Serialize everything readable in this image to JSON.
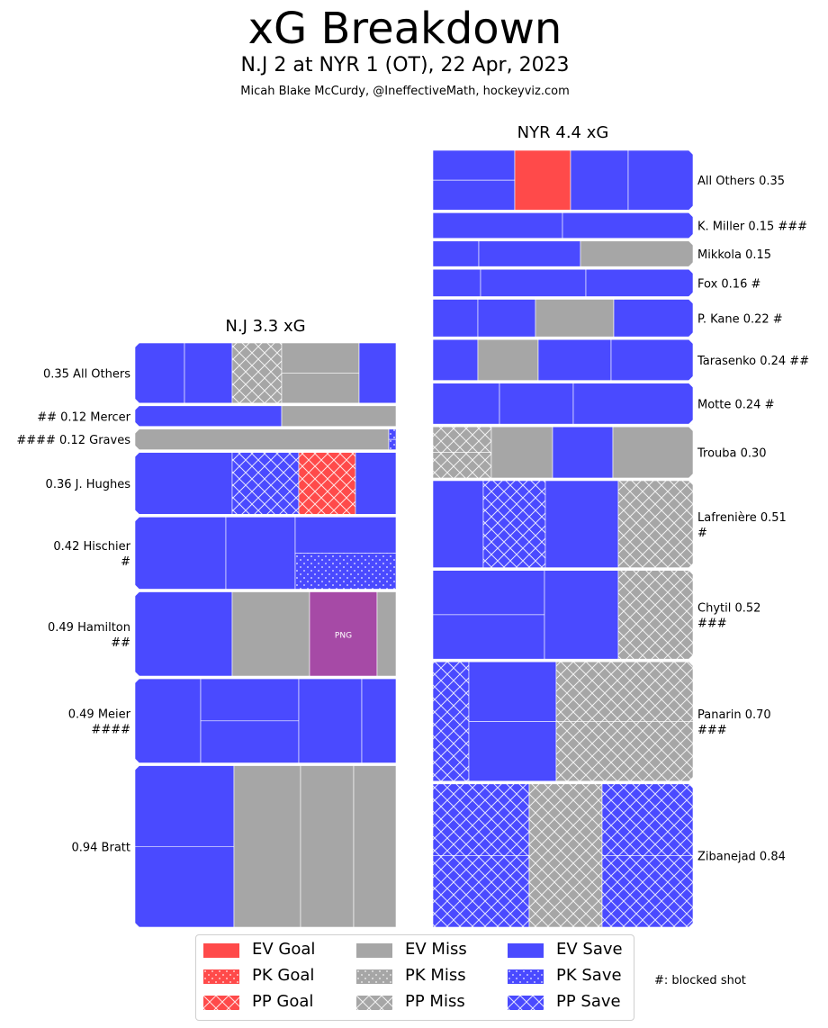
{
  "header": {
    "title": "xG Breakdown",
    "subtitle": "N.J 2 at NYR 1 (OT), 22 Apr, 2023",
    "credit": "Micah Blake McCurdy, @IneffectiveMath, hockeyviz.com"
  },
  "colors": {
    "goal": "#ff4a4a",
    "miss": "#a6a6a6",
    "save": "#4a4aff",
    "png": "#a64aa6"
  },
  "chart_data": [
    {
      "type": "treemap",
      "team": "N.J",
      "title": "N.J 3.3 xG",
      "total_xg": 3.3,
      "players": [
        {
          "label": "0.35 All Others",
          "label_lines": [
            "0.35 All Others"
          ],
          "name": "All Others",
          "xg": 0.35,
          "blocked": 0
        },
        {
          "label": "## 0.12 Mercer",
          "label_lines": [
            "## 0.12 Mercer"
          ],
          "name": "Mercer",
          "xg": 0.12,
          "blocked": 2
        },
        {
          "label": "#### 0.12 Graves",
          "label_lines": [
            "#### 0.12 Graves"
          ],
          "name": "Graves",
          "xg": 0.12,
          "blocked": 4
        },
        {
          "label": "0.36 J. Hughes",
          "label_lines": [
            "0.36 J. Hughes"
          ],
          "name": "J. Hughes",
          "xg": 0.36,
          "blocked": 0
        },
        {
          "label": "0.42 Hischier #",
          "label_lines": [
            "0.42 Hischier",
            "#"
          ],
          "name": "Hischier",
          "xg": 0.42,
          "blocked": 1
        },
        {
          "label": "0.49 Hamilton ##",
          "label_lines": [
            "0.49 Hamilton",
            "##"
          ],
          "name": "Hamilton",
          "xg": 0.49,
          "blocked": 2
        },
        {
          "label": "0.49 Meier ####",
          "label_lines": [
            "0.49 Meier",
            "####"
          ],
          "name": "Meier",
          "xg": 0.49,
          "blocked": 4
        },
        {
          "label": "0.94 Bratt",
          "label_lines": [
            "0.94 Bratt"
          ],
          "name": "Bratt",
          "xg": 0.94,
          "blocked": 0
        }
      ]
    },
    {
      "type": "treemap",
      "team": "NYR",
      "title": "NYR 4.4 xG",
      "total_xg": 4.4,
      "players": [
        {
          "label": "All Others 0.35",
          "label_lines": [
            "All Others 0.35"
          ],
          "name": "All Others",
          "xg": 0.35,
          "blocked": 0
        },
        {
          "label": "K. Miller 0.15 ###",
          "label_lines": [
            "K. Miller 0.15 ###"
          ],
          "name": "K. Miller",
          "xg": 0.15,
          "blocked": 3
        },
        {
          "label": "Mikkola 0.15",
          "label_lines": [
            "Mikkola 0.15"
          ],
          "name": "Mikkola",
          "xg": 0.15,
          "blocked": 0
        },
        {
          "label": "Fox 0.16 #",
          "label_lines": [
            "Fox 0.16 #"
          ],
          "name": "Fox",
          "xg": 0.16,
          "blocked": 1
        },
        {
          "label": "P. Kane 0.22 #",
          "label_lines": [
            "P. Kane 0.22 #"
          ],
          "name": "P. Kane",
          "xg": 0.22,
          "blocked": 1
        },
        {
          "label": "Tarasenko 0.24 ##",
          "label_lines": [
            "Tarasenko 0.24 ##"
          ],
          "name": "Tarasenko",
          "xg": 0.24,
          "blocked": 2
        },
        {
          "label": "Motte 0.24 #",
          "label_lines": [
            "Motte 0.24 #"
          ],
          "name": "Motte",
          "xg": 0.24,
          "blocked": 1
        },
        {
          "label": "Trouba 0.30",
          "label_lines": [
            "Trouba 0.30"
          ],
          "name": "Trouba",
          "xg": 0.3,
          "blocked": 0
        },
        {
          "label": "Lafrenière 0.51 #",
          "label_lines": [
            "Lafrenière 0.51",
            "#"
          ],
          "name": "Lafrenière",
          "xg": 0.51,
          "blocked": 1
        },
        {
          "label": "Chytil 0.52 ###",
          "label_lines": [
            "Chytil 0.52",
            "###"
          ],
          "name": "Chytil",
          "xg": 0.52,
          "blocked": 3
        },
        {
          "label": "Panarin 0.70 ###",
          "label_lines": [
            "Panarin 0.70",
            "###"
          ],
          "name": "Panarin",
          "xg": 0.7,
          "blocked": 3
        },
        {
          "label": "Zibanejad 0.84",
          "label_lines": [
            "Zibanejad 0.84"
          ],
          "name": "Zibanejad",
          "xg": 0.84,
          "blocked": 0
        }
      ]
    }
  ],
  "legend": {
    "columns": [
      [
        {
          "label": "EV Goal",
          "type": "goal",
          "strength": "EV"
        },
        {
          "label": "PK Goal",
          "type": "goal",
          "strength": "PK"
        },
        {
          "label": "PP Goal",
          "type": "goal",
          "strength": "PP"
        }
      ],
      [
        {
          "label": "EV Miss",
          "type": "miss",
          "strength": "EV"
        },
        {
          "label": "PK Miss",
          "type": "miss",
          "strength": "PK"
        },
        {
          "label": "PP Miss",
          "type": "miss",
          "strength": "PP"
        }
      ],
      [
        {
          "label": "EV Save",
          "type": "save",
          "strength": "EV"
        },
        {
          "label": "PK Save",
          "type": "save",
          "strength": "PK"
        },
        {
          "label": "PP Save",
          "type": "save",
          "strength": "PP"
        }
      ]
    ],
    "note": "#: blocked shot"
  },
  "annotations": {
    "png_tile_label": "PNG"
  }
}
